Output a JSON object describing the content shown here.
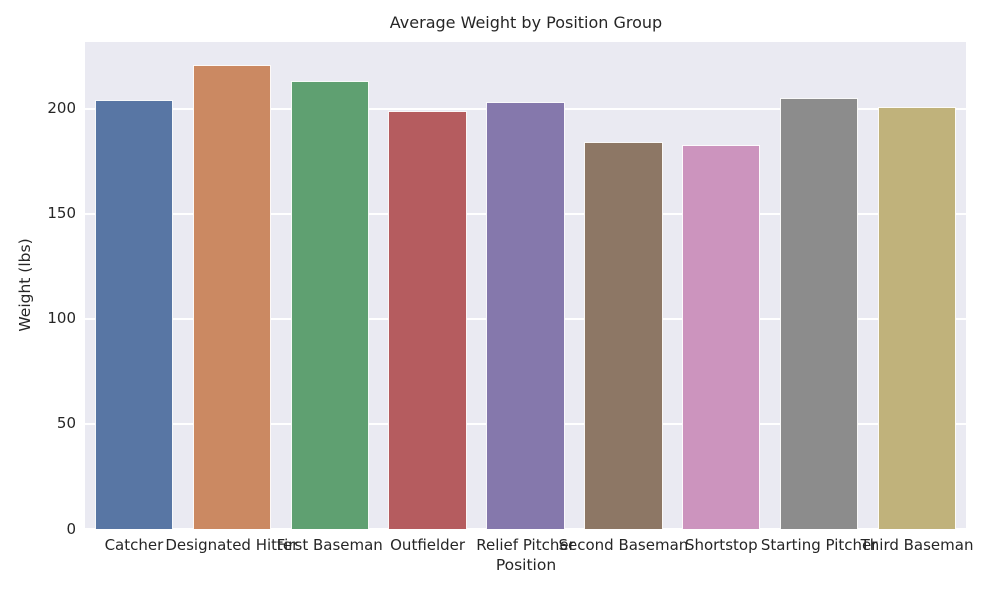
{
  "chart_data": {
    "type": "bar",
    "title": "Average Weight by Position Group",
    "xlabel": "Position",
    "ylabel": "Weight (lbs)",
    "categories": [
      "Catcher",
      "Designated Hitter",
      "First Baseman",
      "Outfielder",
      "Relief Pitcher",
      "Second Baseman",
      "Shortstop",
      "Starting Pitcher",
      "Third Baseman"
    ],
    "values": [
      204.3,
      220.9,
      213.1,
      199.1,
      203.5,
      184.3,
      182.9,
      205.2,
      201.0
    ],
    "bar_colors": [
      "#5876A4",
      "#CB8962",
      "#5FA071",
      "#B55C5F",
      "#8578AC",
      "#8D7765",
      "#CC94BE",
      "#8C8C8C",
      "#C0B27B"
    ],
    "ylim": [
      0,
      231.9
    ],
    "yticks": [
      0,
      50,
      100,
      150,
      200
    ],
    "grid": true,
    "legend": null,
    "bar_width_frac": 0.8,
    "figure_bg": "#FFFFFF",
    "plot_bg": "#EAEAF2",
    "grid_color": "#FFFFFF",
    "text_color": "#262626"
  }
}
